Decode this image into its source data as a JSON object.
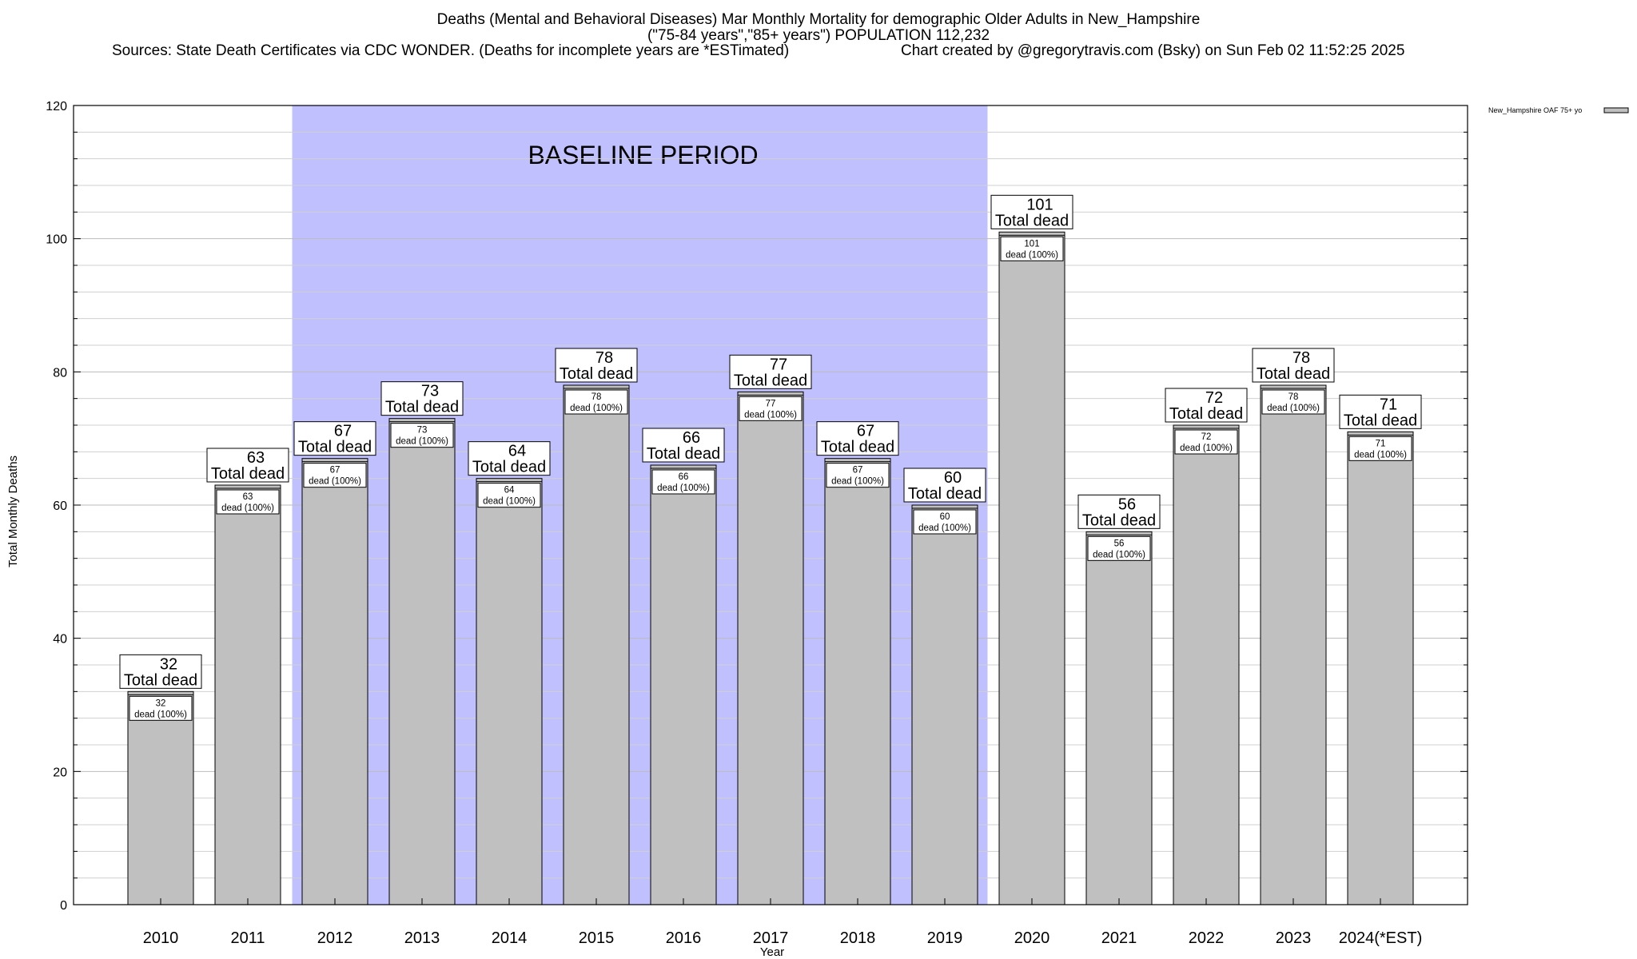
{
  "header": {
    "title": "Deaths (Mental and Behavioral Diseases) Mar Monthly Mortality for demographic Older Adults in New_Hampshire",
    "subtitle": "(\"75-84 years\",\"85+ years\") POPULATION 112,232",
    "source": "Sources: State Death Certificates via CDC WONDER. (Deaths for incomplete years are *ESTimated)",
    "credit": "Chart created by @gregorytravis.com (Bsky) on Sun Feb 02 11:52:25 2025"
  },
  "colors": {
    "bar_fill": "#c0c0c0",
    "baseline_fill": "#c0c0ff",
    "axis": "#000000",
    "grid": "#d0d0d0"
  },
  "chart_data": {
    "type": "bar",
    "title": "Deaths (Mental and Behavioral Diseases) Mar Monthly Mortality for demographic Older Adults in New_Hampshire",
    "xlabel": "Year",
    "ylabel": "Total Monthly Deaths",
    "ylim": [
      0,
      120
    ],
    "yticks": [
      0,
      20,
      40,
      60,
      80,
      100,
      120
    ],
    "minor_tick_step": 4,
    "grid": true,
    "legend": {
      "position": "top-right",
      "entries": [
        "New_Hampshire OAF 75+ yo"
      ]
    },
    "categories": [
      "2010",
      "2011",
      "2012",
      "2013",
      "2014",
      "2015",
      "2016",
      "2017",
      "2018",
      "2019",
      "2020",
      "2021",
      "2022",
      "2023",
      "2024(*EST)"
    ],
    "series": [
      {
        "name": "New_Hampshire OAF 75+ yo",
        "values": [
          32,
          63,
          67,
          73,
          64,
          78,
          66,
          77,
          67,
          60,
          101,
          56,
          72,
          78,
          71
        ]
      }
    ],
    "top_label_suffix": "Total dead",
    "inner_label_suffix": "dead (100%)",
    "annotation": {
      "text": "BASELINE PERIOD",
      "start_category": "2012",
      "end_category": "2019"
    }
  }
}
